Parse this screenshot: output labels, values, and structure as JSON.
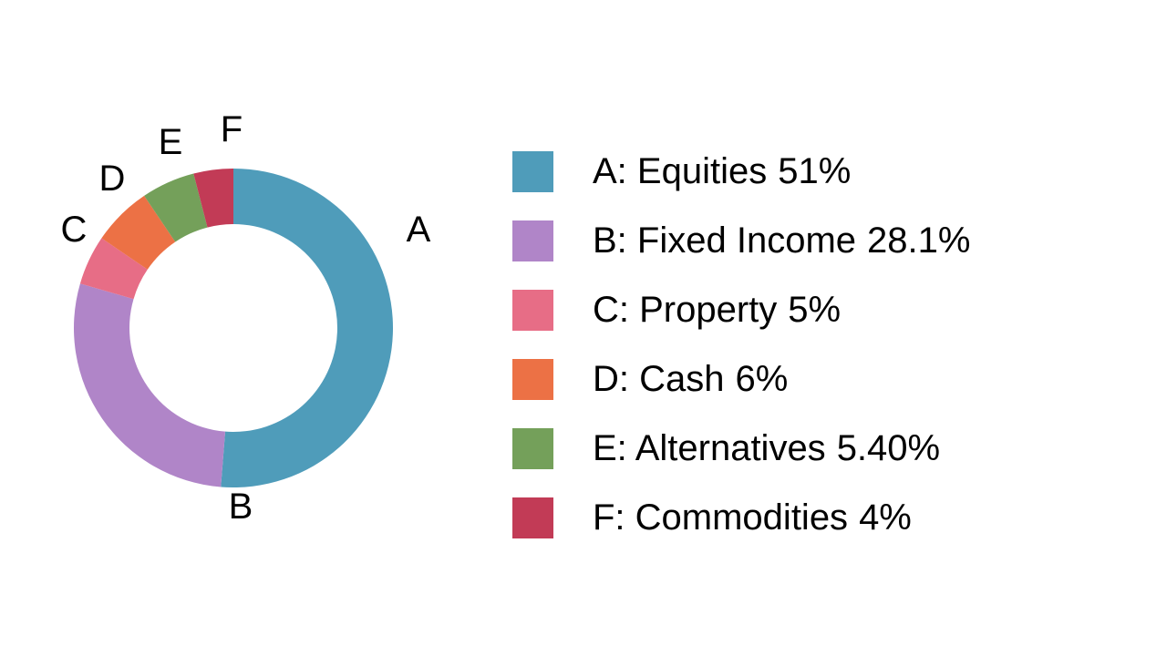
{
  "chart_data": {
    "type": "pie",
    "subtype": "donut",
    "title": "",
    "direction": "clockwise",
    "start_angle_deg": 0,
    "inner_radius_ratio": 0.65,
    "legend_position": "right",
    "slices": [
      {
        "letter": "A",
        "label": "Equities",
        "value": 51,
        "value_text": "51%",
        "color": "#4f9cba"
      },
      {
        "letter": "B",
        "label": "Fixed Income",
        "value": 28.1,
        "value_text": "28.1%",
        "color": "#b085c8"
      },
      {
        "letter": "C",
        "label": "Property",
        "value": 5,
        "value_text": "5%",
        "color": "#e76d86"
      },
      {
        "letter": "D",
        "label": "Cash",
        "value": 6,
        "value_text": "6%",
        "color": "#ec7145"
      },
      {
        "letter": "E",
        "label": "Alternatives",
        "value": 5.4,
        "value_text": "5.40%",
        "color": "#74a05a"
      },
      {
        "letter": "F",
        "label": "Commodities",
        "value": 4,
        "value_text": "4%",
        "color": "#c23b56"
      }
    ]
  },
  "legend": {
    "items": [
      {
        "text": "A: Equities",
        "value": "51%"
      },
      {
        "text": "B: Fixed Income",
        "value": "28.1%"
      },
      {
        "text": "C: Property",
        "value": "5%"
      },
      {
        "text": "D: Cash",
        "value": "6%"
      },
      {
        "text": "E: Alternatives",
        "value": "5.40%"
      },
      {
        "text": "F: Commodities",
        "value": "4%"
      }
    ]
  }
}
